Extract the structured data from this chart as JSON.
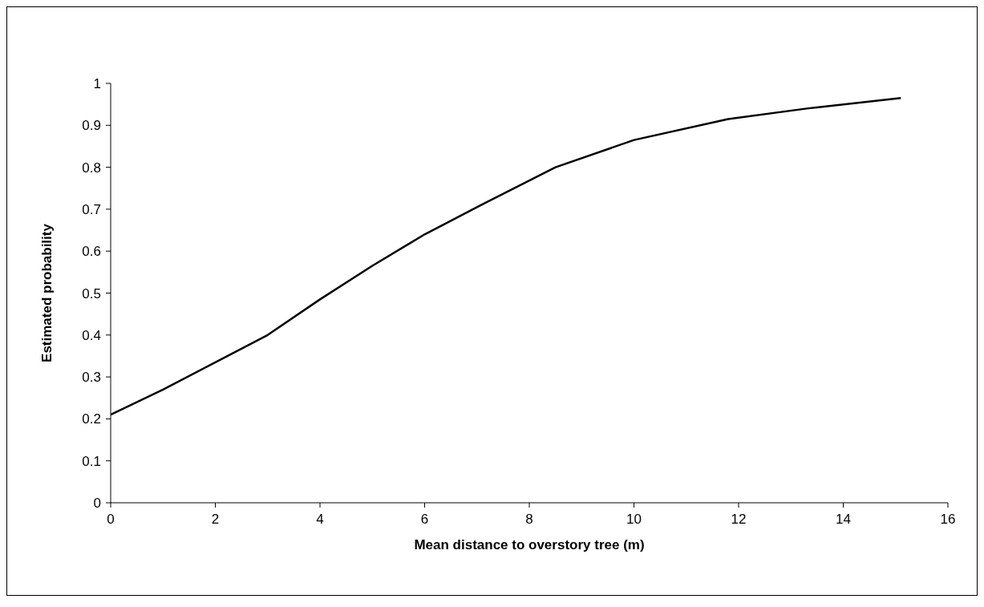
{
  "chart_data": {
    "type": "line",
    "xlabel": "Mean distance to overstory tree (m)",
    "ylabel": "Estimated probability",
    "series": [
      {
        "color": "#000000",
        "x": [
          0,
          1,
          2,
          3,
          4,
          5,
          6,
          7,
          8.5,
          10,
          11.8,
          13.3,
          15.1
        ],
        "values": [
          0.21,
          0.27,
          0.335,
          0.4,
          0.485,
          0.565,
          0.64,
          0.705,
          0.8,
          0.865,
          0.915,
          0.94,
          0.965
        ]
      }
    ],
    "xlim": [
      0,
      16
    ],
    "xticks": [
      0,
      2,
      4,
      6,
      8,
      10,
      12,
      14,
      16
    ],
    "ylim": [
      0,
      1
    ],
    "yticks": [
      0,
      0.1,
      0.2,
      0.3,
      0.4,
      0.5,
      0.6,
      0.7,
      0.8,
      0.9,
      1
    ],
    "grid": false,
    "legend": false,
    "marker": "none",
    "line_style": "solid"
  }
}
